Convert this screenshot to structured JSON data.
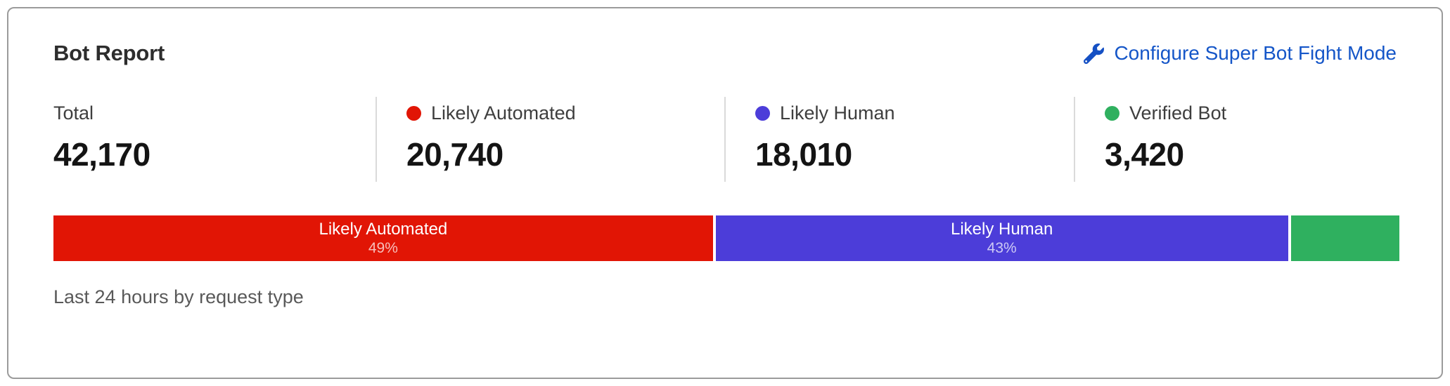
{
  "card": {
    "title": "Bot Report",
    "configure_link": {
      "label": "Configure Super Bot Fight Mode",
      "icon": "wrench-icon",
      "color": "#1556c8"
    },
    "stats": [
      {
        "label": "Total",
        "value": "42,170"
      },
      {
        "label": "Likely Automated",
        "value": "20,740",
        "dot_color": "#e11505"
      },
      {
        "label": "Likely Human",
        "value": "18,010",
        "dot_color": "#4c3dd9"
      },
      {
        "label": "Verified Bot",
        "value": "3,420",
        "dot_color": "#2fb05f"
      }
    ],
    "footer": "Last 24 hours by request type"
  },
  "chart_data": {
    "type": "bar",
    "variant": "stacked-horizontal",
    "title": "Bot Report",
    "caption": "Last 24 hours by request type",
    "total": 42170,
    "legend_position": "top",
    "segments": [
      {
        "label": "Likely Automated",
        "value": 20740,
        "percent": 49.2,
        "percent_label": "49%",
        "color": "#e11505",
        "show_label": true
      },
      {
        "label": "Likely Human",
        "value": 18010,
        "percent": 42.7,
        "percent_label": "43%",
        "color": "#4c3dd9",
        "show_label": true
      },
      {
        "label": "Verified Bot",
        "value": 3420,
        "percent": 8.1,
        "percent_label": "8%",
        "color": "#2fb05f",
        "show_label": false
      }
    ]
  }
}
